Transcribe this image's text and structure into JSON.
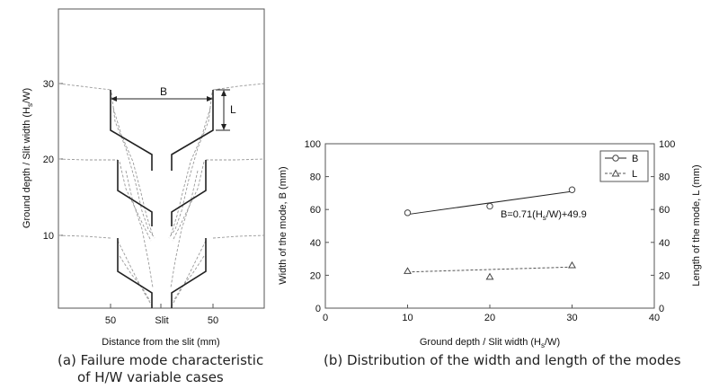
{
  "panel_a": {
    "xlabel": "Distance from the slit (mm)",
    "ylabel": "Ground depth / Slit width (H",
    "ylabel_sub": "s",
    "ylabel_tail": "/W)",
    "x_ticks": [
      "50",
      "Slit",
      "50"
    ],
    "y_ticks": [
      "10",
      "20",
      "30"
    ],
    "annot_b": "B",
    "annot_l": "L",
    "caption_line1": "(a) Failure mode characteristic",
    "caption_line2": "of H/W variable cases"
  },
  "chart_data": [
    {
      "type": "line",
      "title": "",
      "xlabel": "Ground depth / Slit width (Hs/W)",
      "ylabel_left": "Width of the mode, B (mm)",
      "ylabel_right": "Length of the mode, L (mm)",
      "xlim": [
        0,
        40
      ],
      "ylim": [
        0,
        100
      ],
      "x_ticks": [
        0,
        10,
        20,
        30,
        40
      ],
      "y_ticks": [
        0,
        20,
        40,
        60,
        80,
        100
      ],
      "legend_position": "top-right",
      "series": [
        {
          "name": "B",
          "marker": "circle",
          "line": "solid",
          "x": [
            10,
            20,
            30
          ],
          "y": [
            58,
            62,
            72
          ],
          "fit": {
            "x": [
              10,
              30
            ],
            "y": [
              57,
              71
            ]
          }
        },
        {
          "name": "L",
          "marker": "triangle",
          "line": "dashed",
          "x": [
            10,
            20,
            30
          ],
          "y": [
            22.5,
            19,
            26
          ],
          "fit": {
            "x": [
              10,
              30
            ],
            "y": [
              22,
              25
            ]
          }
        }
      ],
      "annotation": "B=0.71(Hs/W)+49.9",
      "caption": "(b) Distribution of the width and length of the modes"
    }
  ]
}
